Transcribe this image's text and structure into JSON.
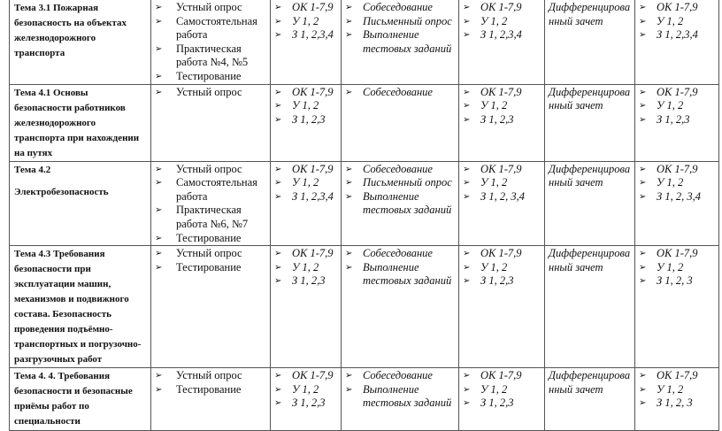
{
  "bullet": "➢",
  "rows": [
    {
      "topic": [
        "Тема 3.1 Пожарная безопасность на объектах железнодорожного транспорта"
      ],
      "forms": [
        "Устный опрос",
        "Самостоятельная работа",
        "Практическая работа №4, №5",
        "Тестирование"
      ],
      "results1": [
        "ОК 1-7,9",
        "У 1, 2",
        "З 1, 2,3,4"
      ],
      "methods": [
        "Собеседование",
        "Письменный опрос",
        "Выполнение тестовых заданий"
      ],
      "results2": [
        "ОК 1-7,9",
        "У 1, 2",
        "З 1, 2,3,4"
      ],
      "final": "Дифференцированный зачет",
      "results3": [
        "ОК 1-7,9",
        "У 1, 2",
        "З 1, 2,3,4"
      ]
    },
    {
      "topic": [
        "Тема 4.1 Основы безопасности работников железнодорожного транспорта при нахождении на путях"
      ],
      "forms": [
        "Устный опрос"
      ],
      "results1": [
        "ОК 1-7,9",
        "У 1, 2",
        "З 1, 2,3"
      ],
      "methods": [
        "Собеседование"
      ],
      "results2": [
        "ОК 1-7,9",
        "У 1, 2",
        "З 1, 2,3"
      ],
      "final": "Дифференцированный зачет",
      "results3": [
        "ОК 1-7,9",
        "У 1, 2",
        "З 1, 2,3"
      ]
    },
    {
      "topic": [
        "Тема 4.2",
        "Электробезопасность"
      ],
      "forms": [
        "Устный опрос",
        "Самостоятельная работа",
        "Практическая работа №6, №7",
        "Тестирование"
      ],
      "results1": [
        "ОК 1-7,9",
        "У 1, 2",
        "З 1, 2,3,4"
      ],
      "methods": [
        "Собеседование",
        "Письменный опрос",
        "Выполнение тестовых заданий"
      ],
      "results2": [
        "ОК 1-7,9",
        "У 1, 2",
        "З 1, 2, 3,4"
      ],
      "final": "Дифференцированный зачет",
      "results3": [
        "ОК 1-7,9",
        "У 1, 2",
        "З 1, 2, 3,4"
      ]
    },
    {
      "topic": [
        "Тема 4.3 Требования безопасности при эксплуатации машин, механизмов и подвижного состава. Безопасность проведения подъёмно-транспортных и погрузочно-разгрузочных работ"
      ],
      "forms": [
        "Устный опрос",
        "Тестирование"
      ],
      "results1": [
        "ОК 1-7,9",
        "У 1, 2",
        "З 1, 2,3"
      ],
      "methods": [
        "Собеседование",
        "Выполнение тестовых заданий"
      ],
      "results2": [
        "ОК 1-7,9",
        "У 1, 2",
        "З 1, 2,3"
      ],
      "final": "Дифференцированный зачет",
      "results3": [
        "ОК 1-7,9",
        "У 1, 2",
        "З 1, 2, 3"
      ]
    },
    {
      "topic": [
        "Тема 4. 4. Требования безопасности и безопасные приёмы работ по специальности"
      ],
      "forms": [
        "Устный опрос",
        "Тестирование"
      ],
      "results1": [
        "ОК 1-7,9",
        "У 1, 2",
        "З 1, 2,3"
      ],
      "methods": [
        "Собеседование",
        "Выполнение тестовых заданий"
      ],
      "results2": [
        "ОК 1-7,9",
        "У 1, 2",
        "З 1, 2,3"
      ],
      "final": "Дифференцированный зачет",
      "results3": [
        "ОК 1-7,9",
        "У 1, 2",
        "З 1, 2, 3"
      ]
    }
  ]
}
